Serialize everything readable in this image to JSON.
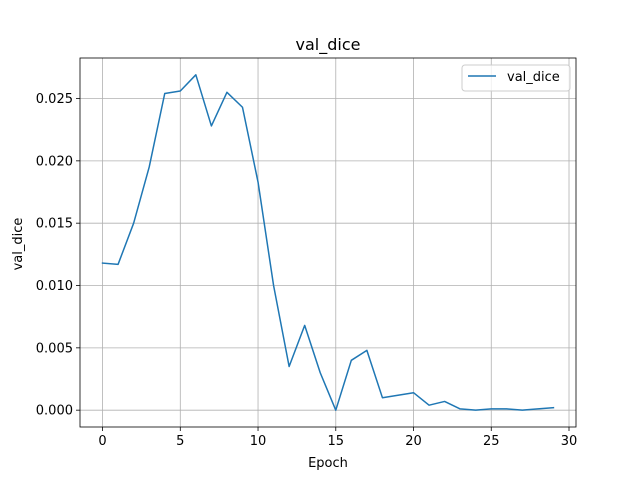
{
  "chart_data": {
    "type": "line",
    "title": "val_dice",
    "xlabel": "Epoch",
    "ylabel": "val_dice",
    "xlim": [
      -1.45,
      30.45
    ],
    "ylim": [
      -0.00135,
      0.02825
    ],
    "xticks": [
      0,
      5,
      10,
      15,
      20,
      25,
      30
    ],
    "xtick_labels": [
      "0",
      "5",
      "10",
      "15",
      "20",
      "25",
      "30"
    ],
    "yticks": [
      0.0,
      0.005,
      0.01,
      0.015,
      0.02,
      0.025
    ],
    "ytick_labels": [
      "0.000",
      "0.005",
      "0.010",
      "0.015",
      "0.020",
      "0.025"
    ],
    "grid": true,
    "legend_position": "top-right",
    "series": [
      {
        "name": "val_dice",
        "color": "#1f77b4",
        "x": [
          0,
          1,
          2,
          3,
          4,
          5,
          6,
          7,
          8,
          9,
          10,
          11,
          12,
          13,
          14,
          15,
          16,
          17,
          18,
          19,
          20,
          21,
          22,
          23,
          24,
          25,
          26,
          27,
          28,
          29
        ],
        "values": [
          0.0118,
          0.0117,
          0.015,
          0.0195,
          0.0254,
          0.0256,
          0.0269,
          0.0228,
          0.0255,
          0.0243,
          0.0183,
          0.01,
          0.0035,
          0.0068,
          0.003,
          0.0,
          0.004,
          0.0048,
          0.001,
          0.0012,
          0.0014,
          0.0004,
          0.0007,
          0.0001,
          0.0,
          0.0001,
          0.0001,
          0.0,
          0.0001,
          0.0002
        ]
      }
    ]
  }
}
